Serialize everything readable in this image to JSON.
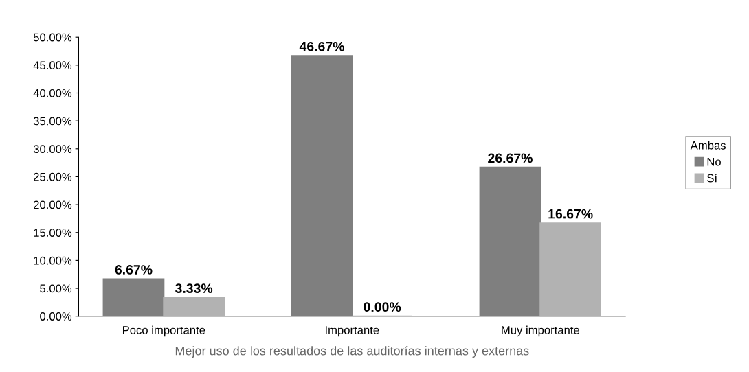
{
  "chart_data": {
    "type": "bar",
    "xlabel": "Mejor uso de los resultados de las auditorías internas y externas",
    "categories": [
      "Poco importante",
      "Importante",
      "Muy importante"
    ],
    "series": [
      {
        "name": "No",
        "color": "#7f7f7f",
        "values": [
          6.67,
          46.67,
          26.67
        ],
        "value_labels": [
          "6.67%",
          "46.67%",
          "26.67%"
        ]
      },
      {
        "name": "Sí",
        "color": "#b2b2b2",
        "values": [
          3.33,
          0,
          16.67
        ],
        "value_labels": [
          "3.33%",
          "0.00%",
          "16.67%"
        ]
      }
    ],
    "ylim": [
      0,
      50
    ],
    "yticks": [
      {
        "value": 0,
        "label": "0.00%"
      },
      {
        "value": 5,
        "label": "5.00%"
      },
      {
        "value": 10,
        "label": "10.00%"
      },
      {
        "value": 15,
        "label": "15.00%"
      },
      {
        "value": 20,
        "label": "20.00%"
      },
      {
        "value": 25,
        "label": "25.00%"
      },
      {
        "value": 30,
        "label": "30.00%"
      },
      {
        "value": 35,
        "label": "35.00%"
      },
      {
        "value": 40,
        "label": "40.00%"
      },
      {
        "value": 45,
        "label": "45.00%"
      },
      {
        "value": 50,
        "label": "50.00%"
      }
    ],
    "legend_title": "Ambas",
    "legend": "right",
    "grid": false
  }
}
